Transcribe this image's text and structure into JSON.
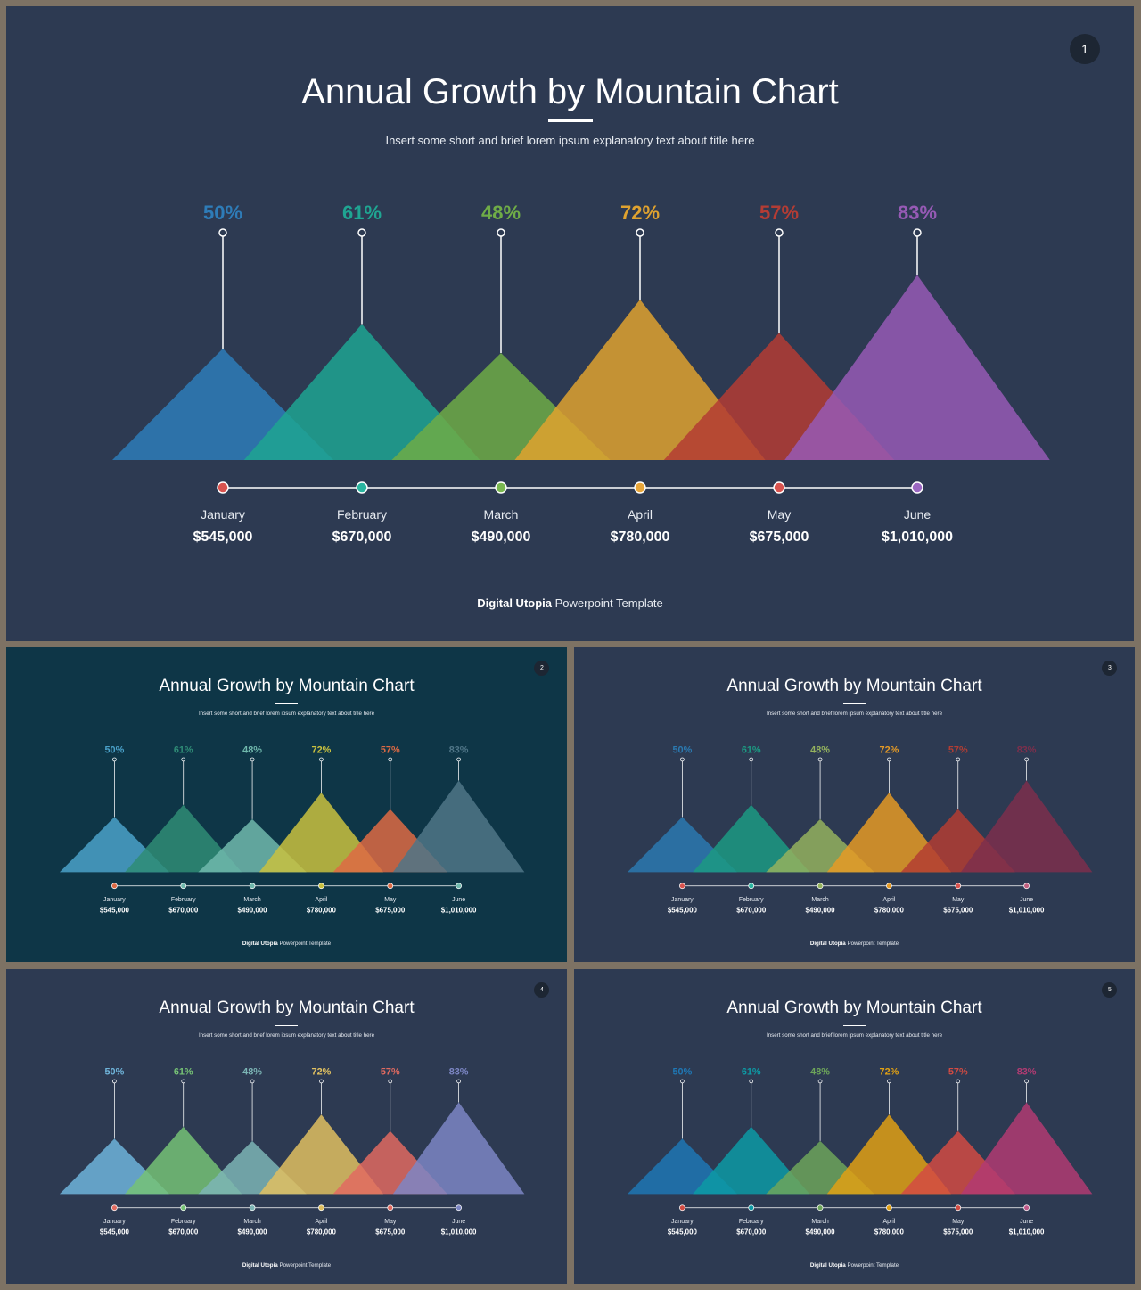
{
  "slides": [
    {
      "number": "1",
      "background": "#2d3a52",
      "title": "Annual Growth by Mountain Chart",
      "subtitle": "Insert some short and brief lorem ipsum explanatory text about title here",
      "footer_brand": "Digital Utopia",
      "footer_rest": " Powerpoint Template",
      "colors": [
        "#2e7cb8",
        "#1fa592",
        "#6fac47",
        "#dfa22f",
        "#b43c34",
        "#965ab5"
      ],
      "dot_colors": [
        "#d9534f",
        "#2ab5a0",
        "#7ab850",
        "#e8a63a",
        "#d9534f",
        "#9b67c2"
      ]
    },
    {
      "number": "2",
      "background": "#0e3647",
      "title": "Annual Growth by Mountain Chart",
      "subtitle": "Insert some short and brief lorem ipsum explanatory text about title here",
      "footer_brand": "Digital Utopia",
      "footer_rest": " Powerpoint Template",
      "colors": [
        "#4aa1c9",
        "#2f8c76",
        "#70b9ad",
        "#c9c140",
        "#dd6a44",
        "#4f7587"
      ],
      "dot_colors": [
        "#dd6a44",
        "#70b9ad",
        "#70b9ad",
        "#c9c140",
        "#dd6a44",
        "#70b9ad"
      ]
    },
    {
      "number": "3",
      "background": "#2d3a52",
      "title": "Annual Growth by Mountain Chart",
      "subtitle": "Insert some short and brief lorem ipsum explanatory text about title here",
      "footer_brand": "Digital Utopia",
      "footer_rest": " Powerpoint Template",
      "colors": [
        "#2b79b0",
        "#1c9a82",
        "#94b25e",
        "#e59a25",
        "#b33d33",
        "#7c2f4c"
      ],
      "dot_colors": [
        "#d9534f",
        "#2ab5a0",
        "#94b25e",
        "#e59a25",
        "#d9534f",
        "#c06080"
      ]
    },
    {
      "number": "4",
      "background": "#2d3a52",
      "title": "Annual Growth by Mountain Chart",
      "subtitle": "Insert some short and brief lorem ipsum explanatory text about title here",
      "footer_brand": "Digital Utopia",
      "footer_rest": " Powerpoint Template",
      "colors": [
        "#6fb4da",
        "#76c275",
        "#7cb5b5",
        "#e0c060",
        "#e06a60",
        "#7c86c4"
      ],
      "dot_colors": [
        "#e06a60",
        "#76c275",
        "#7cb5b5",
        "#e0c060",
        "#e06a60",
        "#7c86c4"
      ]
    },
    {
      "number": "5",
      "background": "#2d3a52",
      "title": "Annual Growth by Mountain Chart",
      "subtitle": "Insert some short and brief lorem ipsum explanatory text about title here",
      "footer_brand": "Digital Utopia",
      "footer_rest": " Powerpoint Template",
      "colors": [
        "#1f77b4",
        "#0d9aa5",
        "#6da55a",
        "#e0a014",
        "#d24b43",
        "#b13b72"
      ],
      "dot_colors": [
        "#d24b43",
        "#0d9aa5",
        "#6da55a",
        "#e0a014",
        "#d24b43",
        "#c05a8a"
      ]
    }
  ],
  "chart_data": {
    "type": "area",
    "categories": [
      "January",
      "February",
      "March",
      "April",
      "May",
      "June"
    ],
    "values": [
      50,
      61,
      48,
      72,
      57,
      83
    ],
    "value_labels": [
      "50%",
      "61%",
      "48%",
      "72%",
      "57%",
      "83%"
    ],
    "amounts": [
      "$545,000",
      "$670,000",
      "$490,000",
      "$780,000",
      "$675,000",
      "$1,010,000"
    ]
  }
}
